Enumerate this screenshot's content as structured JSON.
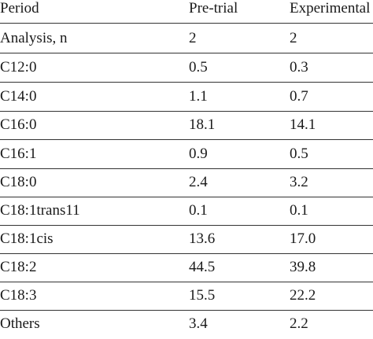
{
  "table": {
    "header": [
      "Period",
      "Pre-trial",
      "Experimental"
    ],
    "rows": [
      [
        "Analysis, n",
        "2",
        "2"
      ],
      [
        "C12:0",
        "0.5",
        "0.3"
      ],
      [
        "C14:0",
        "1.1",
        "0.7"
      ],
      [
        "C16:0",
        "18.1",
        "14.1"
      ],
      [
        "C16:1",
        "0.9",
        "0.5"
      ],
      [
        "C18:0",
        "2.4",
        "3.2"
      ],
      [
        "C18:1trans11",
        "0.1",
        "0.1"
      ],
      [
        "C18:1cis",
        "13.6",
        "17.0"
      ],
      [
        "C18:2",
        "44.5",
        "39.8"
      ],
      [
        "C18:3",
        "15.5",
        "22.2"
      ],
      [
        "Others",
        "3.4",
        "2.2"
      ]
    ]
  }
}
